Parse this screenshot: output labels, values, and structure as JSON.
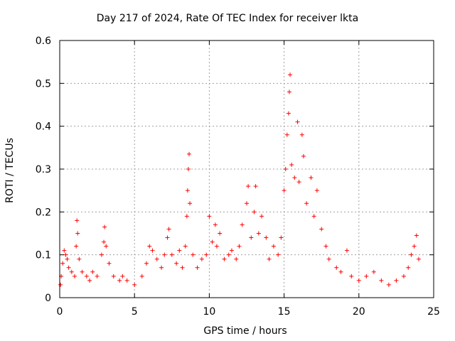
{
  "chart_data": {
    "type": "scatter",
    "title": "Day 217 of 2024, Rate Of TEC Index for receiver lkta",
    "xlabel": "GPS time / hours",
    "ylabel": "ROTI / TECUs",
    "xlim": [
      0,
      25
    ],
    "ylim": [
      0,
      0.6
    ],
    "x_ticks": [
      "0",
      "5",
      "10",
      "15",
      "20",
      "25"
    ],
    "y_ticks": [
      "0",
      "0.1",
      "0.2",
      "0.3",
      "0.4",
      "0.5",
      "0.6"
    ],
    "grid": true,
    "marker": "+",
    "color": "#ff0000",
    "series": [
      {
        "points": [
          [
            0.05,
            0.03
          ],
          [
            0.1,
            0.05
          ],
          [
            0.2,
            0.08
          ],
          [
            0.3,
            0.11
          ],
          [
            0.4,
            0.1
          ],
          [
            0.5,
            0.09
          ],
          [
            0.6,
            0.07
          ],
          [
            0.8,
            0.06
          ],
          [
            1.0,
            0.05
          ],
          [
            1.1,
            0.12
          ],
          [
            1.15,
            0.18
          ],
          [
            1.2,
            0.15
          ],
          [
            1.3,
            0.09
          ],
          [
            1.5,
            0.06
          ],
          [
            1.8,
            0.05
          ],
          [
            2.0,
            0.04
          ],
          [
            2.2,
            0.06
          ],
          [
            2.5,
            0.05
          ],
          [
            2.8,
            0.1
          ],
          [
            2.95,
            0.13
          ],
          [
            3.0,
            0.165
          ],
          [
            3.1,
            0.12
          ],
          [
            3.3,
            0.08
          ],
          [
            3.6,
            0.05
          ],
          [
            4.0,
            0.04
          ],
          [
            4.2,
            0.05
          ],
          [
            4.5,
            0.04
          ],
          [
            5.0,
            0.03
          ],
          [
            5.5,
            0.05
          ],
          [
            5.8,
            0.08
          ],
          [
            6.0,
            0.12
          ],
          [
            6.2,
            0.11
          ],
          [
            6.5,
            0.09
          ],
          [
            6.8,
            0.07
          ],
          [
            7.0,
            0.1
          ],
          [
            7.2,
            0.14
          ],
          [
            7.3,
            0.16
          ],
          [
            7.5,
            0.1
          ],
          [
            7.8,
            0.08
          ],
          [
            8.0,
            0.11
          ],
          [
            8.2,
            0.07
          ],
          [
            8.4,
            0.12
          ],
          [
            8.5,
            0.19
          ],
          [
            8.55,
            0.25
          ],
          [
            8.6,
            0.3
          ],
          [
            8.65,
            0.335
          ],
          [
            8.7,
            0.22
          ],
          [
            8.9,
            0.1
          ],
          [
            9.2,
            0.07
          ],
          [
            9.5,
            0.09
          ],
          [
            9.8,
            0.1
          ],
          [
            10.0,
            0.19
          ],
          [
            10.2,
            0.13
          ],
          [
            10.4,
            0.17
          ],
          [
            10.5,
            0.12
          ],
          [
            10.7,
            0.15
          ],
          [
            11.0,
            0.09
          ],
          [
            11.3,
            0.1
          ],
          [
            11.5,
            0.11
          ],
          [
            11.8,
            0.09
          ],
          [
            12.0,
            0.12
          ],
          [
            12.2,
            0.17
          ],
          [
            12.5,
            0.22
          ],
          [
            12.6,
            0.26
          ],
          [
            12.8,
            0.14
          ],
          [
            13.0,
            0.2
          ],
          [
            13.1,
            0.26
          ],
          [
            13.3,
            0.15
          ],
          [
            13.5,
            0.19
          ],
          [
            13.8,
            0.14
          ],
          [
            14.0,
            0.09
          ],
          [
            14.3,
            0.12
          ],
          [
            14.6,
            0.1
          ],
          [
            14.8,
            0.14
          ],
          [
            15.0,
            0.25
          ],
          [
            15.1,
            0.3
          ],
          [
            15.2,
            0.38
          ],
          [
            15.3,
            0.43
          ],
          [
            15.35,
            0.48
          ],
          [
            15.4,
            0.52
          ],
          [
            15.5,
            0.31
          ],
          [
            15.7,
            0.28
          ],
          [
            15.9,
            0.41
          ],
          [
            16.0,
            0.27
          ],
          [
            16.2,
            0.38
          ],
          [
            16.3,
            0.33
          ],
          [
            16.5,
            0.22
          ],
          [
            16.8,
            0.28
          ],
          [
            17.0,
            0.19
          ],
          [
            17.2,
            0.25
          ],
          [
            17.5,
            0.16
          ],
          [
            17.8,
            0.12
          ],
          [
            18.0,
            0.09
          ],
          [
            18.5,
            0.07
          ],
          [
            18.8,
            0.06
          ],
          [
            19.2,
            0.11
          ],
          [
            19.5,
            0.05
          ],
          [
            20.0,
            0.04
          ],
          [
            20.5,
            0.05
          ],
          [
            21.0,
            0.06
          ],
          [
            21.5,
            0.04
          ],
          [
            22.0,
            0.03
          ],
          [
            22.5,
            0.04
          ],
          [
            23.0,
            0.05
          ],
          [
            23.3,
            0.07
          ],
          [
            23.5,
            0.1
          ],
          [
            23.7,
            0.12
          ],
          [
            23.85,
            0.145
          ],
          [
            24.0,
            0.09
          ]
        ]
      }
    ]
  }
}
